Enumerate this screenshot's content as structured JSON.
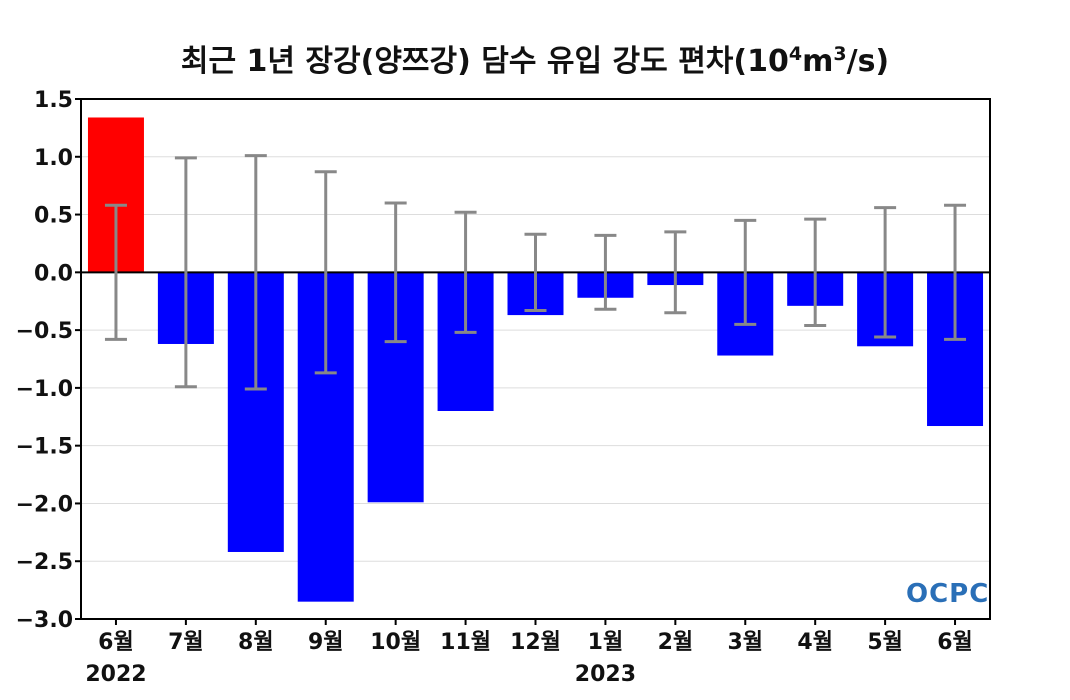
{
  "title": {
    "main": "최근 1년 장강(양쯔강) 담수 유입 강도 편차(10",
    "sup1": "4",
    "mid": "m",
    "sup2": "3",
    "end": "/s)"
  },
  "logo_text": "OCPC",
  "colors": {
    "positive": "#ff0000",
    "negative": "#0000ff",
    "errorbar": "#888888",
    "grid": "#dddddd"
  },
  "chart_data": {
    "type": "bar",
    "title": "최근 1년 장강(양쯔강) 담수 유입 강도 편차(10⁴m³/s)",
    "categories": [
      "6월",
      "7월",
      "8월",
      "9월",
      "10월",
      "11월",
      "12월",
      "1월",
      "2월",
      "3월",
      "4월",
      "5월",
      "6월"
    ],
    "year_labels": [
      {
        "category_index": 0,
        "label": "2022"
      },
      {
        "category_index": 7,
        "label": "2023"
      }
    ],
    "series": [
      {
        "values": [
          1.34,
          -0.62,
          -2.42,
          -2.85,
          -1.99,
          -1.2,
          -0.37,
          -0.22,
          -0.11,
          -0.72,
          -0.29,
          -0.64,
          -1.33
        ]
      }
    ],
    "error_bars": [
      0.58,
      0.99,
      1.01,
      0.87,
      0.6,
      0.52,
      0.33,
      0.32,
      0.35,
      0.45,
      0.46,
      0.56,
      0.58
    ],
    "ylim": [
      -3.0,
      1.5
    ],
    "yticks": [
      "1.5",
      "1.0",
      "0.5",
      "0.0",
      "−0.5",
      "−1.0",
      "−1.5",
      "−2.0",
      "−2.5",
      "−3.0"
    ],
    "ytick_values": [
      1.5,
      1.0,
      0.5,
      0.0,
      -0.5,
      -1.0,
      -1.5,
      -2.0,
      -2.5,
      -3.0
    ],
    "grid": true
  }
}
